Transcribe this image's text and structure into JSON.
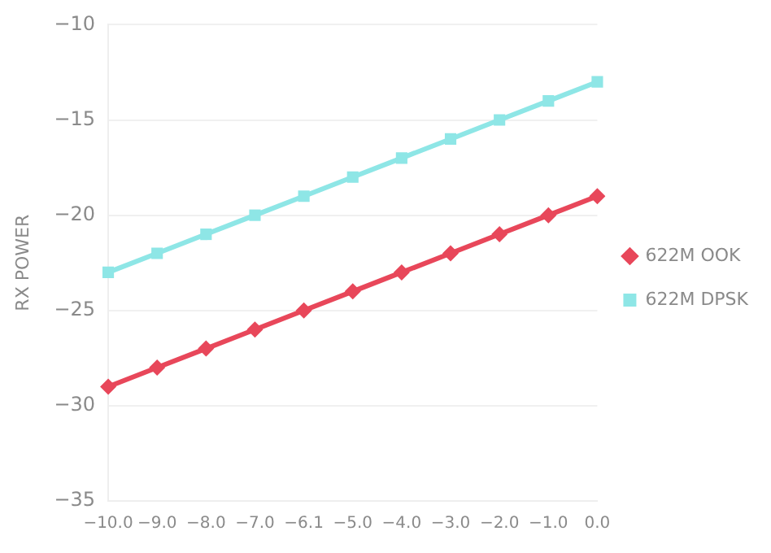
{
  "chart_data": {
    "type": "line",
    "ylabel": "RX POWER",
    "categories": [
      "−10.0",
      "−9.0",
      "−8.0",
      "−7.0",
      "−6.1",
      "−5.0",
      "−4.0",
      "−3.0",
      "−2.0",
      "−1.0",
      "0.0"
    ],
    "series": [
      {
        "name": "622M OOK",
        "color": "#e8475a",
        "marker": "diamond",
        "values": [
          -29,
          -28,
          -27,
          -26,
          -25,
          -24,
          -23,
          -22,
          -21,
          -20,
          -19
        ]
      },
      {
        "name": "622M DPSK",
        "color": "#8ee6e6",
        "marker": "square",
        "values": [
          -23,
          -22,
          -21,
          -20,
          -19,
          -18,
          -17,
          -16,
          -15,
          -14,
          -13
        ]
      }
    ],
    "ylim": [
      -35,
      -10
    ],
    "yticks": [
      {
        "value": -35,
        "label": "−35"
      },
      {
        "value": -30,
        "label": "−30"
      },
      {
        "value": -25,
        "label": "−25"
      },
      {
        "value": -20,
        "label": "−20"
      },
      {
        "value": -15,
        "label": "−15"
      },
      {
        "value": -10,
        "label": "−10"
      }
    ],
    "grid": "y",
    "legend": "right",
    "line_style": "solid"
  }
}
